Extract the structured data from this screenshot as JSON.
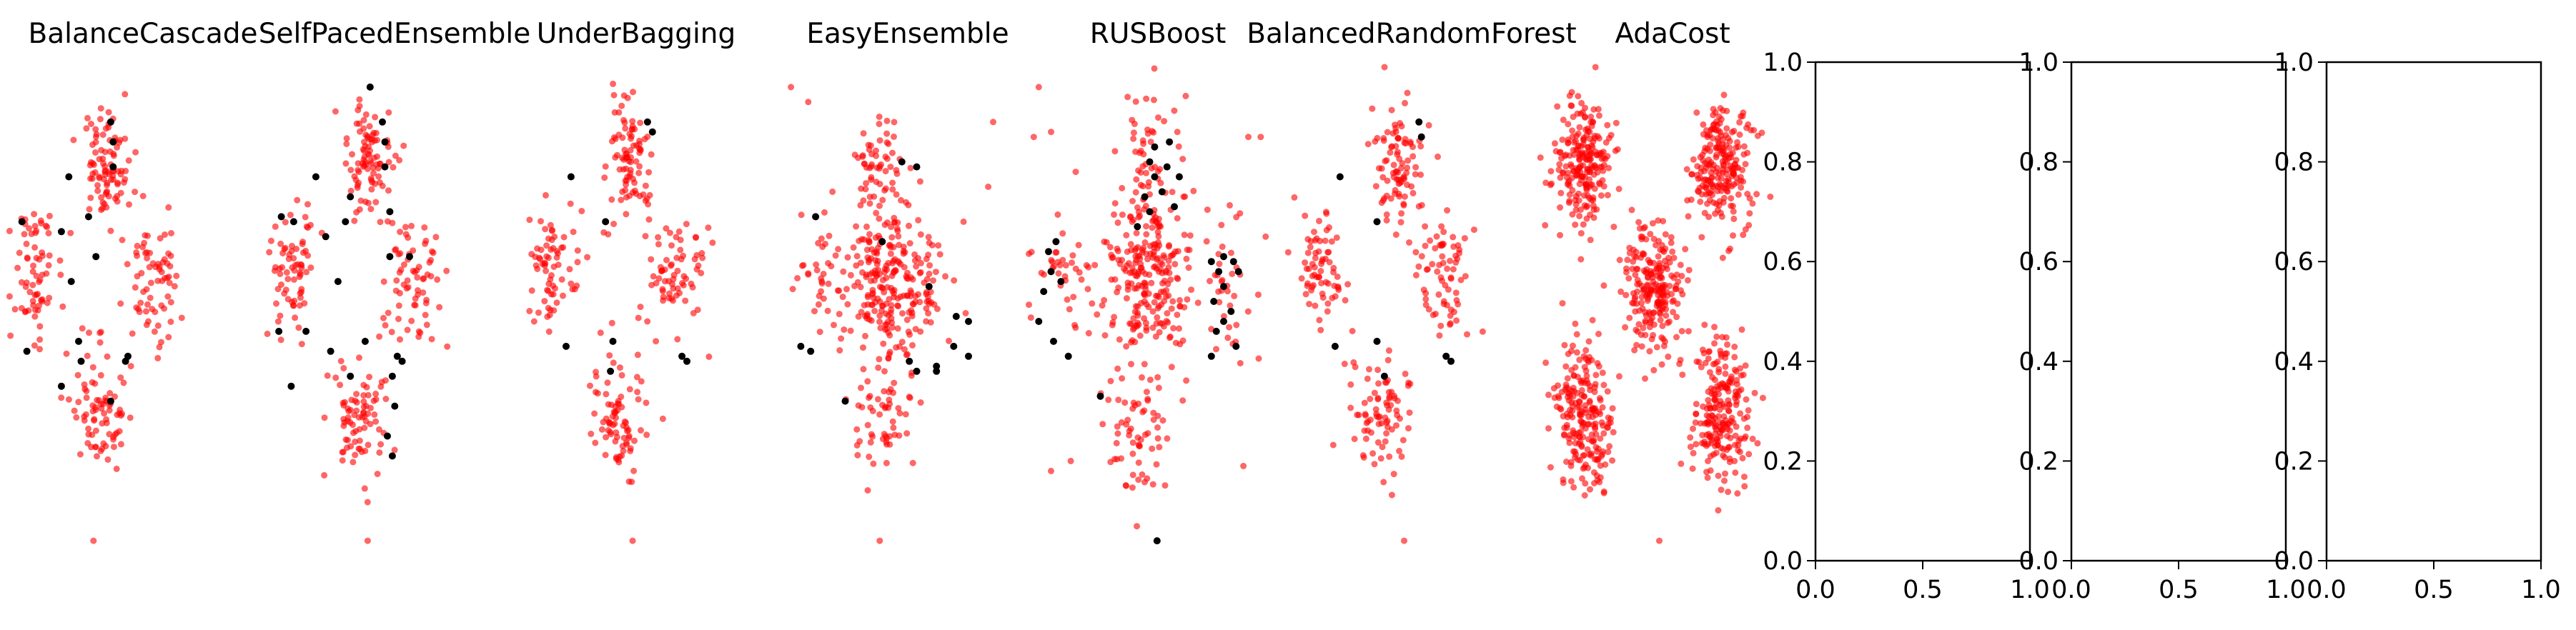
{
  "colors": {
    "minority": "#000000",
    "majority": "#ff0000",
    "axis": "#000000",
    "background": "#ffffff"
  },
  "chart_data": [
    {
      "type": "scatter",
      "title": "BalanceCascade",
      "axes_visible": false,
      "xlim": [
        0,
        1
      ],
      "ylim": [
        0,
        1
      ],
      "pattern": "diamond",
      "minority": [
        [
          0.42,
          0.88
        ],
        [
          0.43,
          0.84
        ],
        [
          0.25,
          0.77
        ],
        [
          0.43,
          0.79
        ],
        [
          0.33,
          0.69
        ],
        [
          0.06,
          0.68
        ],
        [
          0.22,
          0.66
        ],
        [
          0.36,
          0.61
        ],
        [
          0.26,
          0.56
        ],
        [
          0.08,
          0.42
        ],
        [
          0.29,
          0.44
        ],
        [
          0.3,
          0.4
        ],
        [
          0.48,
          0.4
        ],
        [
          0.49,
          0.41
        ],
        [
          0.22,
          0.35
        ],
        [
          0.42,
          0.32
        ]
      ],
      "majority_clusters": [
        [
          0.4,
          0.79,
          0.05,
          0.06,
          90
        ],
        [
          0.11,
          0.58,
          0.05,
          0.06,
          70
        ],
        [
          0.59,
          0.57,
          0.06,
          0.07,
          70
        ],
        [
          0.37,
          0.3,
          0.06,
          0.06,
          80
        ]
      ],
      "majority_outliers": [
        [
          0.35,
          0.04
        ],
        [
          0.38,
          0.22
        ]
      ]
    },
    {
      "type": "scatter",
      "title": "SelfPacedEnsemble",
      "axes_visible": false,
      "xlim": [
        0,
        1
      ],
      "ylim": [
        0,
        1
      ],
      "pattern": "diamond",
      "minority": [
        [
          0.44,
          0.95
        ],
        [
          0.49,
          0.88
        ],
        [
          0.5,
          0.84
        ],
        [
          0.22,
          0.77
        ],
        [
          0.5,
          0.79
        ],
        [
          0.36,
          0.73
        ],
        [
          0.08,
          0.69
        ],
        [
          0.13,
          0.68
        ],
        [
          0.52,
          0.7
        ],
        [
          0.34,
          0.68
        ],
        [
          0.26,
          0.65
        ],
        [
          0.52,
          0.61
        ],
        [
          0.6,
          0.61
        ],
        [
          0.31,
          0.56
        ],
        [
          0.07,
          0.46
        ],
        [
          0.18,
          0.46
        ],
        [
          0.42,
          0.44
        ],
        [
          0.55,
          0.41
        ],
        [
          0.57,
          0.4
        ],
        [
          0.28,
          0.42
        ],
        [
          0.12,
          0.35
        ],
        [
          0.53,
          0.37
        ],
        [
          0.36,
          0.37
        ],
        [
          0.54,
          0.31
        ],
        [
          0.51,
          0.25
        ],
        [
          0.53,
          0.21
        ]
      ],
      "majority_clusters": [
        [
          0.43,
          0.8,
          0.05,
          0.06,
          90
        ],
        [
          0.13,
          0.58,
          0.05,
          0.06,
          70
        ],
        [
          0.61,
          0.57,
          0.06,
          0.07,
          70
        ],
        [
          0.39,
          0.29,
          0.06,
          0.06,
          80
        ]
      ],
      "majority_outliers": [
        [
          0.43,
          0.04
        ],
        [
          0.42,
          0.22
        ]
      ]
    },
    {
      "type": "scatter",
      "title": "UnderBagging",
      "axes_visible": false,
      "xlim": [
        0,
        1
      ],
      "ylim": [
        0,
        1
      ],
      "pattern": "diamond",
      "minority": [
        [
          0.53,
          0.88
        ],
        [
          0.55,
          0.86
        ],
        [
          0.22,
          0.77
        ],
        [
          0.36,
          0.68
        ],
        [
          0.2,
          0.43
        ],
        [
          0.39,
          0.44
        ],
        [
          0.67,
          0.41
        ],
        [
          0.69,
          0.4
        ],
        [
          0.38,
          0.38
        ]
      ],
      "majority_clusters": [
        [
          0.46,
          0.8,
          0.05,
          0.06,
          90
        ],
        [
          0.14,
          0.58,
          0.05,
          0.06,
          70
        ],
        [
          0.64,
          0.57,
          0.06,
          0.07,
          70
        ],
        [
          0.4,
          0.29,
          0.06,
          0.06,
          80
        ]
      ],
      "majority_outliers": [
        [
          0.47,
          0.04
        ],
        [
          0.46,
          0.22
        ]
      ]
    },
    {
      "type": "scatter",
      "title": "EasyEnsemble",
      "axes_visible": false,
      "xlim": [
        0,
        1
      ],
      "ylim": [
        0,
        1
      ],
      "pattern": "dense-center",
      "minority": [
        [
          0.53,
          0.8
        ],
        [
          0.59,
          0.79
        ],
        [
          0.18,
          0.69
        ],
        [
          0.45,
          0.64
        ],
        [
          0.64,
          0.55
        ],
        [
          0.75,
          0.49
        ],
        [
          0.8,
          0.48
        ],
        [
          0.74,
          0.43
        ],
        [
          0.8,
          0.41
        ],
        [
          0.12,
          0.43
        ],
        [
          0.16,
          0.42
        ],
        [
          0.56,
          0.4
        ],
        [
          0.59,
          0.38
        ],
        [
          0.67,
          0.39
        ],
        [
          0.67,
          0.38
        ],
        [
          0.3,
          0.32
        ]
      ],
      "majority_clusters": [
        [
          0.47,
          0.55,
          0.08,
          0.08,
          200
        ],
        [
          0.45,
          0.78,
          0.05,
          0.07,
          60
        ],
        [
          0.22,
          0.57,
          0.06,
          0.06,
          40
        ],
        [
          0.63,
          0.57,
          0.06,
          0.06,
          40
        ],
        [
          0.45,
          0.3,
          0.06,
          0.07,
          60
        ]
      ],
      "majority_outliers": [
        [
          0.08,
          0.95
        ],
        [
          0.15,
          0.92
        ],
        [
          0.88,
          0.75
        ],
        [
          0.44,
          0.04
        ],
        [
          0.9,
          0.88
        ],
        [
          0.78,
          0.68
        ]
      ]
    },
    {
      "type": "scatter",
      "title": "RUSBoost",
      "axes_visible": false,
      "xlim": [
        0,
        1
      ],
      "ylim": [
        0,
        1
      ],
      "pattern": "dense-center",
      "minority": [
        [
          0.52,
          0.83
        ],
        [
          0.58,
          0.84
        ],
        [
          0.5,
          0.8
        ],
        [
          0.57,
          0.79
        ],
        [
          0.52,
          0.77
        ],
        [
          0.62,
          0.77
        ],
        [
          0.55,
          0.74
        ],
        [
          0.48,
          0.73
        ],
        [
          0.6,
          0.71
        ],
        [
          0.5,
          0.7
        ],
        [
          0.45,
          0.67
        ],
        [
          0.12,
          0.64
        ],
        [
          0.09,
          0.62
        ],
        [
          0.1,
          0.58
        ],
        [
          0.14,
          0.56
        ],
        [
          0.75,
          0.6
        ],
        [
          0.8,
          0.61
        ],
        [
          0.84,
          0.6
        ],
        [
          0.78,
          0.58
        ],
        [
          0.86,
          0.58
        ],
        [
          0.8,
          0.55
        ],
        [
          0.76,
          0.52
        ],
        [
          0.83,
          0.5
        ],
        [
          0.8,
          0.48
        ],
        [
          0.77,
          0.46
        ],
        [
          0.07,
          0.54
        ],
        [
          0.05,
          0.48
        ],
        [
          0.11,
          0.44
        ],
        [
          0.17,
          0.41
        ],
        [
          0.75,
          0.41
        ],
        [
          0.85,
          0.43
        ],
        [
          0.3,
          0.33
        ],
        [
          0.53,
          0.04
        ]
      ],
      "majority_clusters": [
        [
          0.5,
          0.56,
          0.09,
          0.08,
          220
        ],
        [
          0.5,
          0.8,
          0.06,
          0.08,
          60
        ],
        [
          0.15,
          0.56,
          0.07,
          0.07,
          40
        ],
        [
          0.8,
          0.55,
          0.06,
          0.08,
          40
        ],
        [
          0.45,
          0.27,
          0.08,
          0.07,
          70
        ]
      ],
      "majority_outliers": [
        [
          0.03,
          0.85
        ],
        [
          0.1,
          0.86
        ],
        [
          0.05,
          0.95
        ],
        [
          0.9,
          0.85
        ],
        [
          0.95,
          0.85
        ],
        [
          0.88,
          0.19
        ],
        [
          0.1,
          0.18
        ],
        [
          0.18,
          0.2
        ],
        [
          0.97,
          0.65
        ],
        [
          0.2,
          0.78
        ]
      ]
    },
    {
      "type": "scatter",
      "title": "BalancedRandomForest",
      "axes_visible": false,
      "xlim": [
        0,
        1
      ],
      "ylim": [
        0,
        1
      ],
      "pattern": "diamond",
      "minority": [
        [
          0.56,
          0.88
        ],
        [
          0.57,
          0.85
        ],
        [
          0.24,
          0.77
        ],
        [
          0.39,
          0.68
        ],
        [
          0.67,
          0.41
        ],
        [
          0.69,
          0.4
        ],
        [
          0.22,
          0.43
        ],
        [
          0.39,
          0.44
        ],
        [
          0.42,
          0.37
        ]
      ],
      "majority_clusters": [
        [
          0.48,
          0.8,
          0.05,
          0.06,
          90
        ],
        [
          0.16,
          0.58,
          0.05,
          0.06,
          70
        ],
        [
          0.66,
          0.57,
          0.06,
          0.07,
          70
        ],
        [
          0.42,
          0.29,
          0.06,
          0.06,
          80
        ]
      ],
      "majority_outliers": [
        [
          0.5,
          0.04
        ],
        [
          0.48,
          0.22
        ]
      ]
    },
    {
      "type": "scatter",
      "title": "AdaCost",
      "axes_visible": false,
      "xlim": [
        0,
        1
      ],
      "ylim": [
        0,
        1
      ],
      "pattern": "five-clusters",
      "minority": [],
      "majority_clusters": [
        [
          0.2,
          0.79,
          0.06,
          0.06,
          220
        ],
        [
          0.75,
          0.79,
          0.06,
          0.06,
          220
        ],
        [
          0.48,
          0.55,
          0.06,
          0.06,
          220
        ],
        [
          0.2,
          0.29,
          0.06,
          0.07,
          220
        ],
        [
          0.75,
          0.29,
          0.06,
          0.07,
          220
        ]
      ],
      "majority_outliers": [
        [
          0.5,
          0.04
        ],
        [
          0.95,
          0.73
        ]
      ]
    },
    {
      "type": "scatter",
      "title": "",
      "axes_visible": true,
      "xlim": [
        0,
        1
      ],
      "ylim": [
        0,
        1
      ],
      "xticks": [
        "0.0",
        "0.5",
        "1.0"
      ],
      "yticks": [
        "0.0",
        "0.2",
        "0.4",
        "0.6",
        "0.8",
        "1.0"
      ],
      "minority": [],
      "majority_clusters": [],
      "majority_outliers": []
    },
    {
      "type": "scatter",
      "title": "",
      "axes_visible": true,
      "xlim": [
        0,
        1
      ],
      "ylim": [
        0,
        1
      ],
      "xticks": [
        "0.0",
        "0.5",
        "1.0"
      ],
      "yticks": [
        "0.0",
        "0.2",
        "0.4",
        "0.6",
        "0.8",
        "1.0"
      ],
      "minority": [],
      "majority_clusters": [],
      "majority_outliers": []
    },
    {
      "type": "scatter",
      "title": "",
      "axes_visible": true,
      "xlim": [
        0,
        1
      ],
      "ylim": [
        0,
        1
      ],
      "xticks": [
        "0.0",
        "0.5",
        "1.0"
      ],
      "yticks": [
        "0.0",
        "0.2",
        "0.4",
        "0.6",
        "0.8",
        "1.0"
      ],
      "minority": [],
      "majority_clusters": [],
      "majority_outliers": []
    }
  ]
}
